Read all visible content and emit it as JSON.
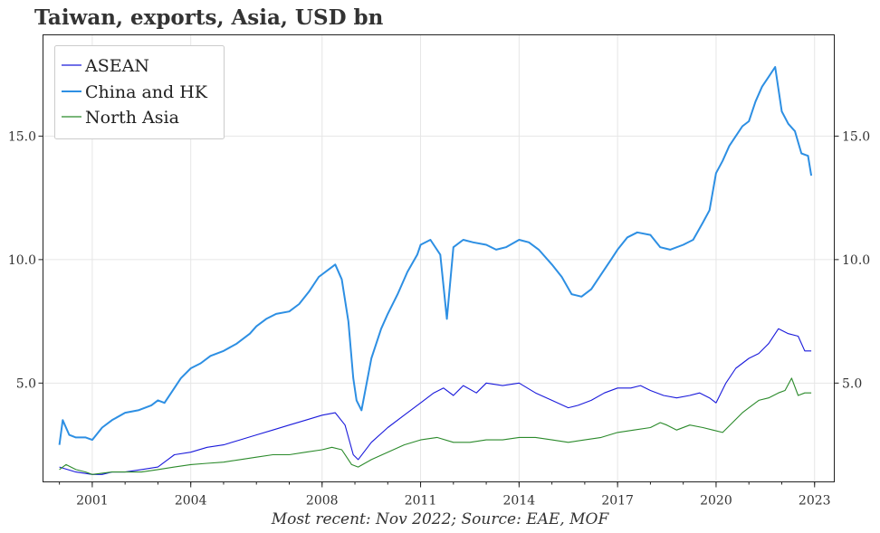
{
  "chart_data": {
    "type": "line",
    "title": "Taiwan, exports, Asia, USD bn",
    "caption": "Most recent: Nov 2022; Source: EAE, MOF",
    "xlabel": "",
    "ylabel": "",
    "xlim": [
      1999.5,
      2023.6
    ],
    "ylim": [
      1.0,
      19.1
    ],
    "x_ticks": [
      2001,
      2004,
      2008,
      2011,
      2014,
      2017,
      2020,
      2023
    ],
    "y_ticks": [
      5.0,
      10.0,
      15.0
    ],
    "y_tick_labels": [
      "5.0",
      "10.0",
      "15.0"
    ],
    "grid": true,
    "legend_position": "top-left",
    "series": [
      {
        "name": "ASEAN",
        "color": "#1a1adb",
        "x": [
          2000.0,
          2000.5,
          2001.0,
          2001.3,
          2001.6,
          2002.0,
          2002.5,
          2003.0,
          2003.5,
          2004.0,
          2004.5,
          2005.0,
          2005.5,
          2006.0,
          2006.5,
          2007.0,
          2007.5,
          2008.0,
          2008.4,
          2008.7,
          2008.95,
          2009.1,
          2009.5,
          2010.0,
          2010.5,
          2011.0,
          2011.4,
          2011.7,
          2012.0,
          2012.3,
          2012.7,
          2013.0,
          2013.5,
          2014.0,
          2014.5,
          2015.0,
          2015.5,
          2015.8,
          2016.2,
          2016.6,
          2017.0,
          2017.4,
          2017.7,
          2018.0,
          2018.4,
          2018.8,
          2019.2,
          2019.5,
          2019.8,
          2020.0,
          2020.3,
          2020.6,
          2021.0,
          2021.3,
          2021.6,
          2021.9,
          2022.2,
          2022.5,
          2022.7,
          2022.9
        ],
        "values": [
          1.6,
          1.4,
          1.3,
          1.3,
          1.4,
          1.4,
          1.5,
          1.6,
          2.1,
          2.2,
          2.4,
          2.5,
          2.7,
          2.9,
          3.1,
          3.3,
          3.5,
          3.7,
          3.8,
          3.3,
          2.1,
          1.9,
          2.6,
          3.2,
          3.7,
          4.2,
          4.6,
          4.8,
          4.5,
          4.9,
          4.6,
          5.0,
          4.9,
          5.0,
          4.6,
          4.3,
          4.0,
          4.1,
          4.3,
          4.6,
          4.8,
          4.8,
          4.9,
          4.7,
          4.5,
          4.4,
          4.5,
          4.6,
          4.4,
          4.2,
          5.0,
          5.6,
          6.0,
          6.2,
          6.6,
          7.2,
          7.0,
          6.9,
          6.3,
          6.3
        ]
      },
      {
        "name": "China and HK",
        "color": "#2d8fe3",
        "x": [
          2000.0,
          2000.1,
          2000.3,
          2000.5,
          2000.8,
          2001.0,
          2001.3,
          2001.6,
          2002.0,
          2002.4,
          2002.8,
          2003.0,
          2003.2,
          2003.5,
          2003.7,
          2004.0,
          2004.3,
          2004.6,
          2005.0,
          2005.4,
          2005.8,
          2006.0,
          2006.3,
          2006.6,
          2007.0,
          2007.3,
          2007.6,
          2007.9,
          2008.2,
          2008.4,
          2008.6,
          2008.8,
          2008.95,
          2009.05,
          2009.2,
          2009.5,
          2009.8,
          2010.0,
          2010.3,
          2010.6,
          2010.9,
          2011.0,
          2011.3,
          2011.6,
          2011.8,
          2012.0,
          2012.3,
          2012.6,
          2013.0,
          2013.3,
          2013.6,
          2014.0,
          2014.3,
          2014.6,
          2015.0,
          2015.3,
          2015.6,
          2015.9,
          2016.2,
          2016.5,
          2016.8,
          2017.0,
          2017.3,
          2017.6,
          2018.0,
          2018.3,
          2018.6,
          2019.0,
          2019.3,
          2019.6,
          2019.8,
          2020.0,
          2020.2,
          2020.4,
          2020.6,
          2020.8,
          2021.0,
          2021.2,
          2021.4,
          2021.6,
          2021.8,
          2022.0,
          2022.2,
          2022.4,
          2022.6,
          2022.8,
          2022.9
        ],
        "values": [
          2.5,
          3.5,
          2.9,
          2.8,
          2.8,
          2.7,
          3.2,
          3.5,
          3.8,
          3.9,
          4.1,
          4.3,
          4.2,
          4.8,
          5.2,
          5.6,
          5.8,
          6.1,
          6.3,
          6.6,
          7.0,
          7.3,
          7.6,
          7.8,
          7.9,
          8.2,
          8.7,
          9.3,
          9.6,
          9.8,
          9.2,
          7.5,
          5.2,
          4.3,
          3.9,
          6.0,
          7.2,
          7.8,
          8.6,
          9.5,
          10.2,
          10.6,
          10.8,
          10.2,
          7.6,
          10.5,
          10.8,
          10.7,
          10.6,
          10.4,
          10.5,
          10.8,
          10.7,
          10.4,
          9.8,
          9.3,
          8.6,
          8.5,
          8.8,
          9.4,
          10.0,
          10.4,
          10.9,
          11.1,
          11.0,
          10.5,
          10.4,
          10.6,
          10.8,
          11.5,
          12.0,
          13.5,
          14.0,
          14.6,
          15.0,
          15.4,
          15.6,
          16.4,
          17.0,
          17.4,
          17.8,
          16.0,
          15.5,
          15.2,
          14.3,
          14.2,
          13.4
        ]
      },
      {
        "name": "North Asia",
        "color": "#2b8a2b",
        "x": [
          2000.0,
          2000.2,
          2000.5,
          2000.8,
          2001.0,
          2001.3,
          2001.6,
          2002.0,
          2002.5,
          2003.0,
          2003.5,
          2004.0,
          2004.5,
          2005.0,
          2005.5,
          2006.0,
          2006.5,
          2007.0,
          2007.5,
          2008.0,
          2008.3,
          2008.6,
          2008.9,
          2009.1,
          2009.5,
          2010.0,
          2010.5,
          2011.0,
          2011.5,
          2012.0,
          2012.5,
          2013.0,
          2013.5,
          2014.0,
          2014.5,
          2015.0,
          2015.5,
          2016.0,
          2016.5,
          2017.0,
          2017.5,
          2018.0,
          2018.3,
          2018.5,
          2018.8,
          2019.2,
          2019.6,
          2019.9,
          2020.2,
          2020.5,
          2020.8,
          2021.0,
          2021.3,
          2021.6,
          2021.9,
          2022.1,
          2022.3,
          2022.5,
          2022.7,
          2022.9
        ],
        "values": [
          1.5,
          1.7,
          1.5,
          1.4,
          1.3,
          1.35,
          1.4,
          1.4,
          1.4,
          1.5,
          1.6,
          1.7,
          1.75,
          1.8,
          1.9,
          2.0,
          2.1,
          2.1,
          2.2,
          2.3,
          2.4,
          2.3,
          1.7,
          1.6,
          1.9,
          2.2,
          2.5,
          2.7,
          2.8,
          2.6,
          2.6,
          2.7,
          2.7,
          2.8,
          2.8,
          2.7,
          2.6,
          2.7,
          2.8,
          3.0,
          3.1,
          3.2,
          3.4,
          3.3,
          3.1,
          3.3,
          3.2,
          3.1,
          3.0,
          3.4,
          3.8,
          4.0,
          4.3,
          4.4,
          4.6,
          4.7,
          5.2,
          4.5,
          4.6,
          4.6
        ]
      }
    ]
  }
}
